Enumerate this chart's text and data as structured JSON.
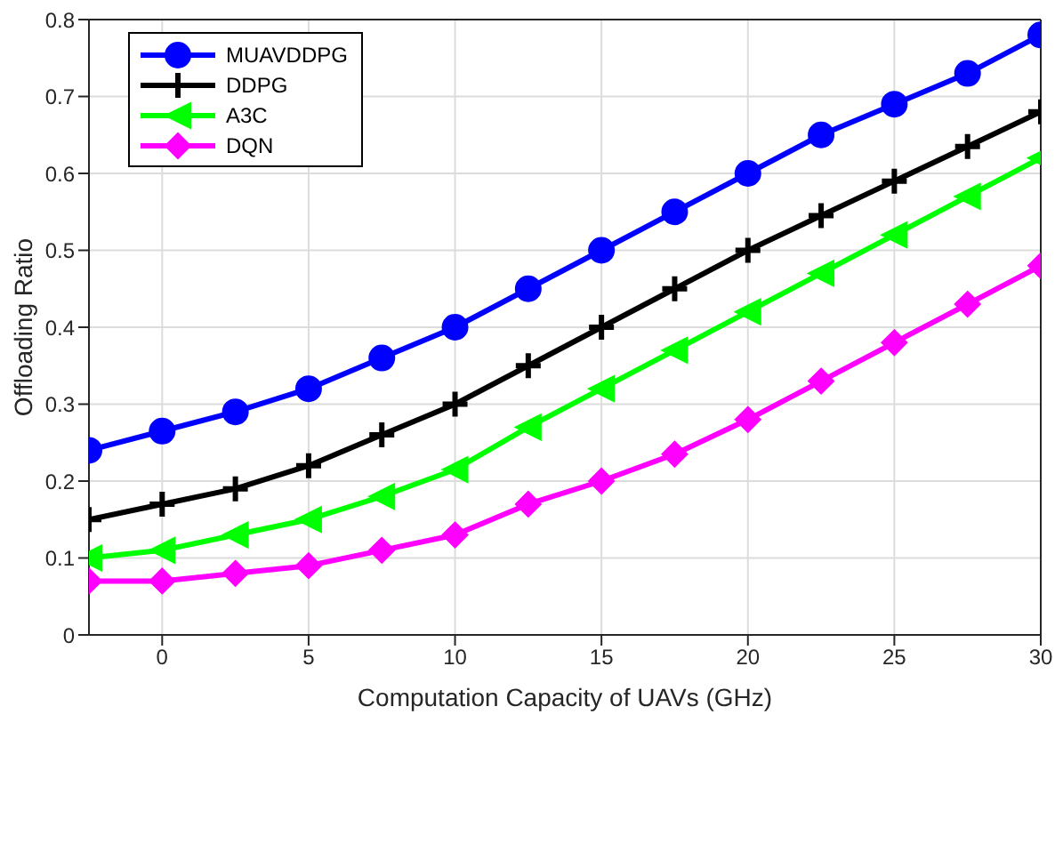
{
  "chart_data": {
    "type": "line",
    "xlabel": "Computation Capacity of UAVs (GHz)",
    "ylabel": "Offloading Ratio",
    "x": [
      -2.5,
      0,
      2.5,
      5,
      7.5,
      10,
      12.5,
      15,
      17.5,
      20,
      22.5,
      25,
      27.5,
      30
    ],
    "series": [
      {
        "name": "MUAVDDPG",
        "color": "#0000ff",
        "marker": "circle",
        "values": [
          0.24,
          0.265,
          0.29,
          0.32,
          0.36,
          0.4,
          0.45,
          0.5,
          0.55,
          0.6,
          0.65,
          0.69,
          0.73,
          0.78
        ]
      },
      {
        "name": "DDPG",
        "color": "#000000",
        "marker": "cross",
        "values": [
          0.15,
          0.17,
          0.19,
          0.22,
          0.26,
          0.3,
          0.35,
          0.4,
          0.45,
          0.5,
          0.545,
          0.59,
          0.635,
          0.68
        ]
      },
      {
        "name": "A3C",
        "color": "#00ff00",
        "marker": "triangle",
        "values": [
          0.1,
          0.11,
          0.13,
          0.15,
          0.18,
          0.215,
          0.27,
          0.32,
          0.37,
          0.42,
          0.47,
          0.52,
          0.57,
          0.62
        ]
      },
      {
        "name": "DQN",
        "color": "#ff00ff",
        "marker": "diamond",
        "values": [
          0.07,
          0.07,
          0.08,
          0.09,
          0.11,
          0.13,
          0.17,
          0.2,
          0.235,
          0.28,
          0.33,
          0.38,
          0.43,
          0.48
        ]
      }
    ],
    "xlim": [
      -2.5,
      30
    ],
    "xticks": [
      0,
      5,
      10,
      15,
      20,
      25,
      30
    ],
    "ylim": [
      0,
      0.8
    ],
    "yticks": [
      0,
      0.1,
      0.2,
      0.3,
      0.4,
      0.5,
      0.6,
      0.7,
      0.8
    ],
    "grid": true,
    "legend": "top left",
    "line_style": "solid"
  }
}
